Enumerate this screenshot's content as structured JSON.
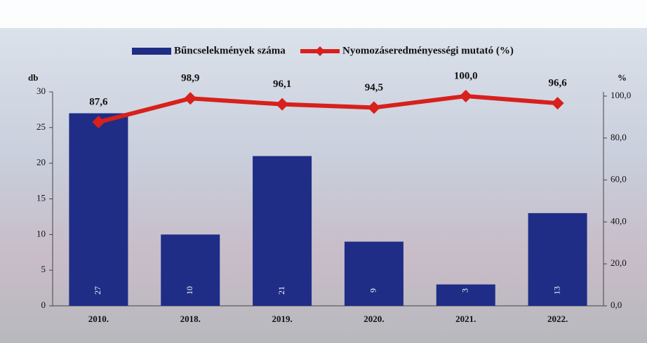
{
  "chart_data": {
    "type": "bar",
    "categories": [
      "2010.",
      "2018.",
      "2019.",
      "2020.",
      "2021.",
      "2022."
    ],
    "series": [
      {
        "name": "Bűncselekmények száma",
        "type": "bar",
        "color": "#1f2d86",
        "values": [
          27,
          10,
          21,
          9,
          3,
          13
        ]
      },
      {
        "name": "Nyomozáseredményességi mutató (%)",
        "type": "line",
        "axis": "y2",
        "color": "#d8201c",
        "values": [
          87.6,
          98.9,
          96.1,
          94.5,
          100.0,
          96.6
        ],
        "value_labels": [
          "87,6",
          "98,9",
          "96,1",
          "94,5",
          "100,0",
          "96,6"
        ]
      }
    ],
    "y_label": "db",
    "y2_label": "%",
    "ylim": [
      0,
      30
    ],
    "yticks": [
      0,
      5,
      10,
      15,
      20,
      25,
      30
    ],
    "y2lim": [
      0,
      102
    ],
    "y2ticks": [
      {
        "value": 0,
        "label": "0,0"
      },
      {
        "value": 20,
        "label": "20,0"
      },
      {
        "value": 40,
        "label": "40,0"
      },
      {
        "value": 60,
        "label": "60,0"
      },
      {
        "value": 80,
        "label": "80,0"
      },
      {
        "value": 100,
        "label": "100,0"
      }
    ]
  }
}
